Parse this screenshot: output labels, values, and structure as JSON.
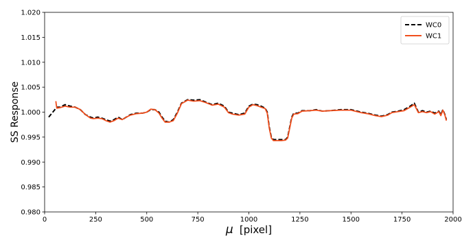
{
  "chart_data": {
    "type": "line",
    "xlabel": "μ [pixel]",
    "xlabel_symbol": "μ",
    "xlabel_unit": "[pixel]",
    "ylabel": "SS Response",
    "xlim": [
      0,
      2000
    ],
    "ylim": [
      0.98,
      1.02
    ],
    "xticks": [
      0,
      250,
      500,
      750,
      1000,
      1250,
      1500,
      1750,
      2000
    ],
    "xtick_labels": [
      "0",
      "250",
      "500",
      "750",
      "1000",
      "1250",
      "1500",
      "1750",
      "2000"
    ],
    "yticks": [
      0.98,
      0.985,
      0.99,
      0.995,
      1.0,
      1.005,
      1.01,
      1.015,
      1.02
    ],
    "ytick_labels": [
      "0.980",
      "0.985",
      "0.990",
      "0.995",
      "1.000",
      "1.005",
      "1.010",
      "1.015",
      "1.020"
    ],
    "grid": false,
    "legend_position": "top-right",
    "series": [
      {
        "name": "WC0",
        "color": "#000000",
        "style": "dashed",
        "x": [
          20,
          30,
          40,
          50,
          60,
          75,
          100,
          125,
          150,
          175,
          200,
          225,
          240,
          260,
          280,
          300,
          320,
          340,
          360,
          380,
          400,
          420,
          450,
          480,
          500,
          520,
          540,
          560,
          575,
          590,
          610,
          630,
          650,
          670,
          700,
          730,
          760,
          790,
          820,
          850,
          880,
          900,
          920,
          950,
          980,
          1000,
          1020,
          1040,
          1060,
          1080,
          1090,
          1100,
          1110,
          1120,
          1140,
          1160,
          1180,
          1190,
          1200,
          1210,
          1220,
          1240,
          1260,
          1300,
          1330,
          1360,
          1400,
          1450,
          1500,
          1550,
          1580,
          1620,
          1650,
          1680,
          1700,
          1730,
          1760,
          1790,
          1810,
          1830,
          1850,
          1870,
          1890,
          1910,
          1930,
          1940,
          1950,
          1960,
          1967
        ],
        "y": [
          0.999,
          0.9995,
          1.0,
          1.0005,
          1.001,
          1.001,
          1.0015,
          1.0012,
          1.001,
          1.0005,
          0.9995,
          0.999,
          0.9988,
          0.999,
          0.9988,
          0.9985,
          0.9982,
          0.9985,
          0.999,
          0.9985,
          0.999,
          0.9995,
          0.9998,
          0.9998,
          1.0,
          1.0005,
          1.0005,
          1.0,
          0.999,
          0.9982,
          0.998,
          0.9985,
          1.0,
          1.0018,
          1.0025,
          1.0024,
          1.0025,
          1.002,
          1.0015,
          1.0018,
          1.0012,
          1.0,
          0.9998,
          0.9995,
          0.9998,
          1.0012,
          1.0016,
          1.0015,
          1.0012,
          1.0008,
          1.0,
          0.997,
          0.995,
          0.9945,
          0.9945,
          0.9945,
          0.9945,
          0.995,
          0.997,
          0.999,
          0.9998,
          0.9998,
          1.0003,
          1.0003,
          1.0005,
          1.0002,
          1.0003,
          1.0005,
          1.0005,
          1.0,
          0.9998,
          0.9994,
          0.9992,
          0.9995,
          1.0,
          1.0002,
          1.0005,
          1.0012,
          1.0018,
          1.0,
          1.0003,
          1.0,
          1.0002,
          0.9998,
          1.0002,
          0.9995,
          1.0005,
          0.9995,
          0.9985
        ]
      },
      {
        "name": "WC1",
        "color": "#f04e1c",
        "style": "solid",
        "x": [
          55,
          57,
          60,
          75,
          100,
          125,
          150,
          175,
          200,
          225,
          240,
          260,
          280,
          300,
          320,
          340,
          360,
          380,
          400,
          420,
          450,
          480,
          500,
          520,
          540,
          560,
          575,
          590,
          610,
          630,
          650,
          670,
          700,
          730,
          760,
          790,
          820,
          850,
          880,
          900,
          920,
          950,
          980,
          1000,
          1020,
          1040,
          1060,
          1080,
          1090,
          1100,
          1110,
          1120,
          1140,
          1160,
          1180,
          1190,
          1200,
          1210,
          1220,
          1240,
          1260,
          1300,
          1330,
          1360,
          1400,
          1450,
          1500,
          1550,
          1580,
          1620,
          1650,
          1680,
          1700,
          1730,
          1760,
          1790,
          1810,
          1830,
          1850,
          1870,
          1890,
          1910,
          1930,
          1940,
          1950,
          1960,
          1967
        ],
        "y": [
          1.0022,
          1.0015,
          1.0008,
          1.0009,
          1.0012,
          1.001,
          1.001,
          1.0005,
          0.9995,
          0.9988,
          0.9987,
          0.9988,
          0.9987,
          0.9983,
          0.998,
          0.9983,
          0.9988,
          0.9985,
          0.999,
          0.9994,
          0.9997,
          0.9998,
          1.0,
          1.0006,
          1.0005,
          0.9998,
          0.9988,
          0.998,
          0.998,
          0.9983,
          0.9998,
          1.0017,
          1.0024,
          1.0022,
          1.0023,
          1.0019,
          1.0014,
          1.0016,
          1.001,
          0.9999,
          0.9996,
          0.9994,
          0.9996,
          1.001,
          1.0015,
          1.0013,
          1.001,
          1.0007,
          0.9998,
          0.9968,
          0.9948,
          0.9943,
          0.9943,
          0.9943,
          0.9944,
          0.9948,
          0.9968,
          0.9988,
          0.9996,
          0.9997,
          1.0002,
          1.0003,
          1.0004,
          1.0002,
          1.0003,
          1.0004,
          1.0004,
          0.9999,
          0.9997,
          0.9993,
          0.9991,
          0.9994,
          0.9999,
          1.0001,
          1.0003,
          1.001,
          1.0015,
          0.9999,
          1.0001,
          0.9999,
          1.0001,
          0.9996,
          1.0001,
          0.9993,
          1.0004,
          0.9994,
          0.9983
        ]
      }
    ]
  }
}
